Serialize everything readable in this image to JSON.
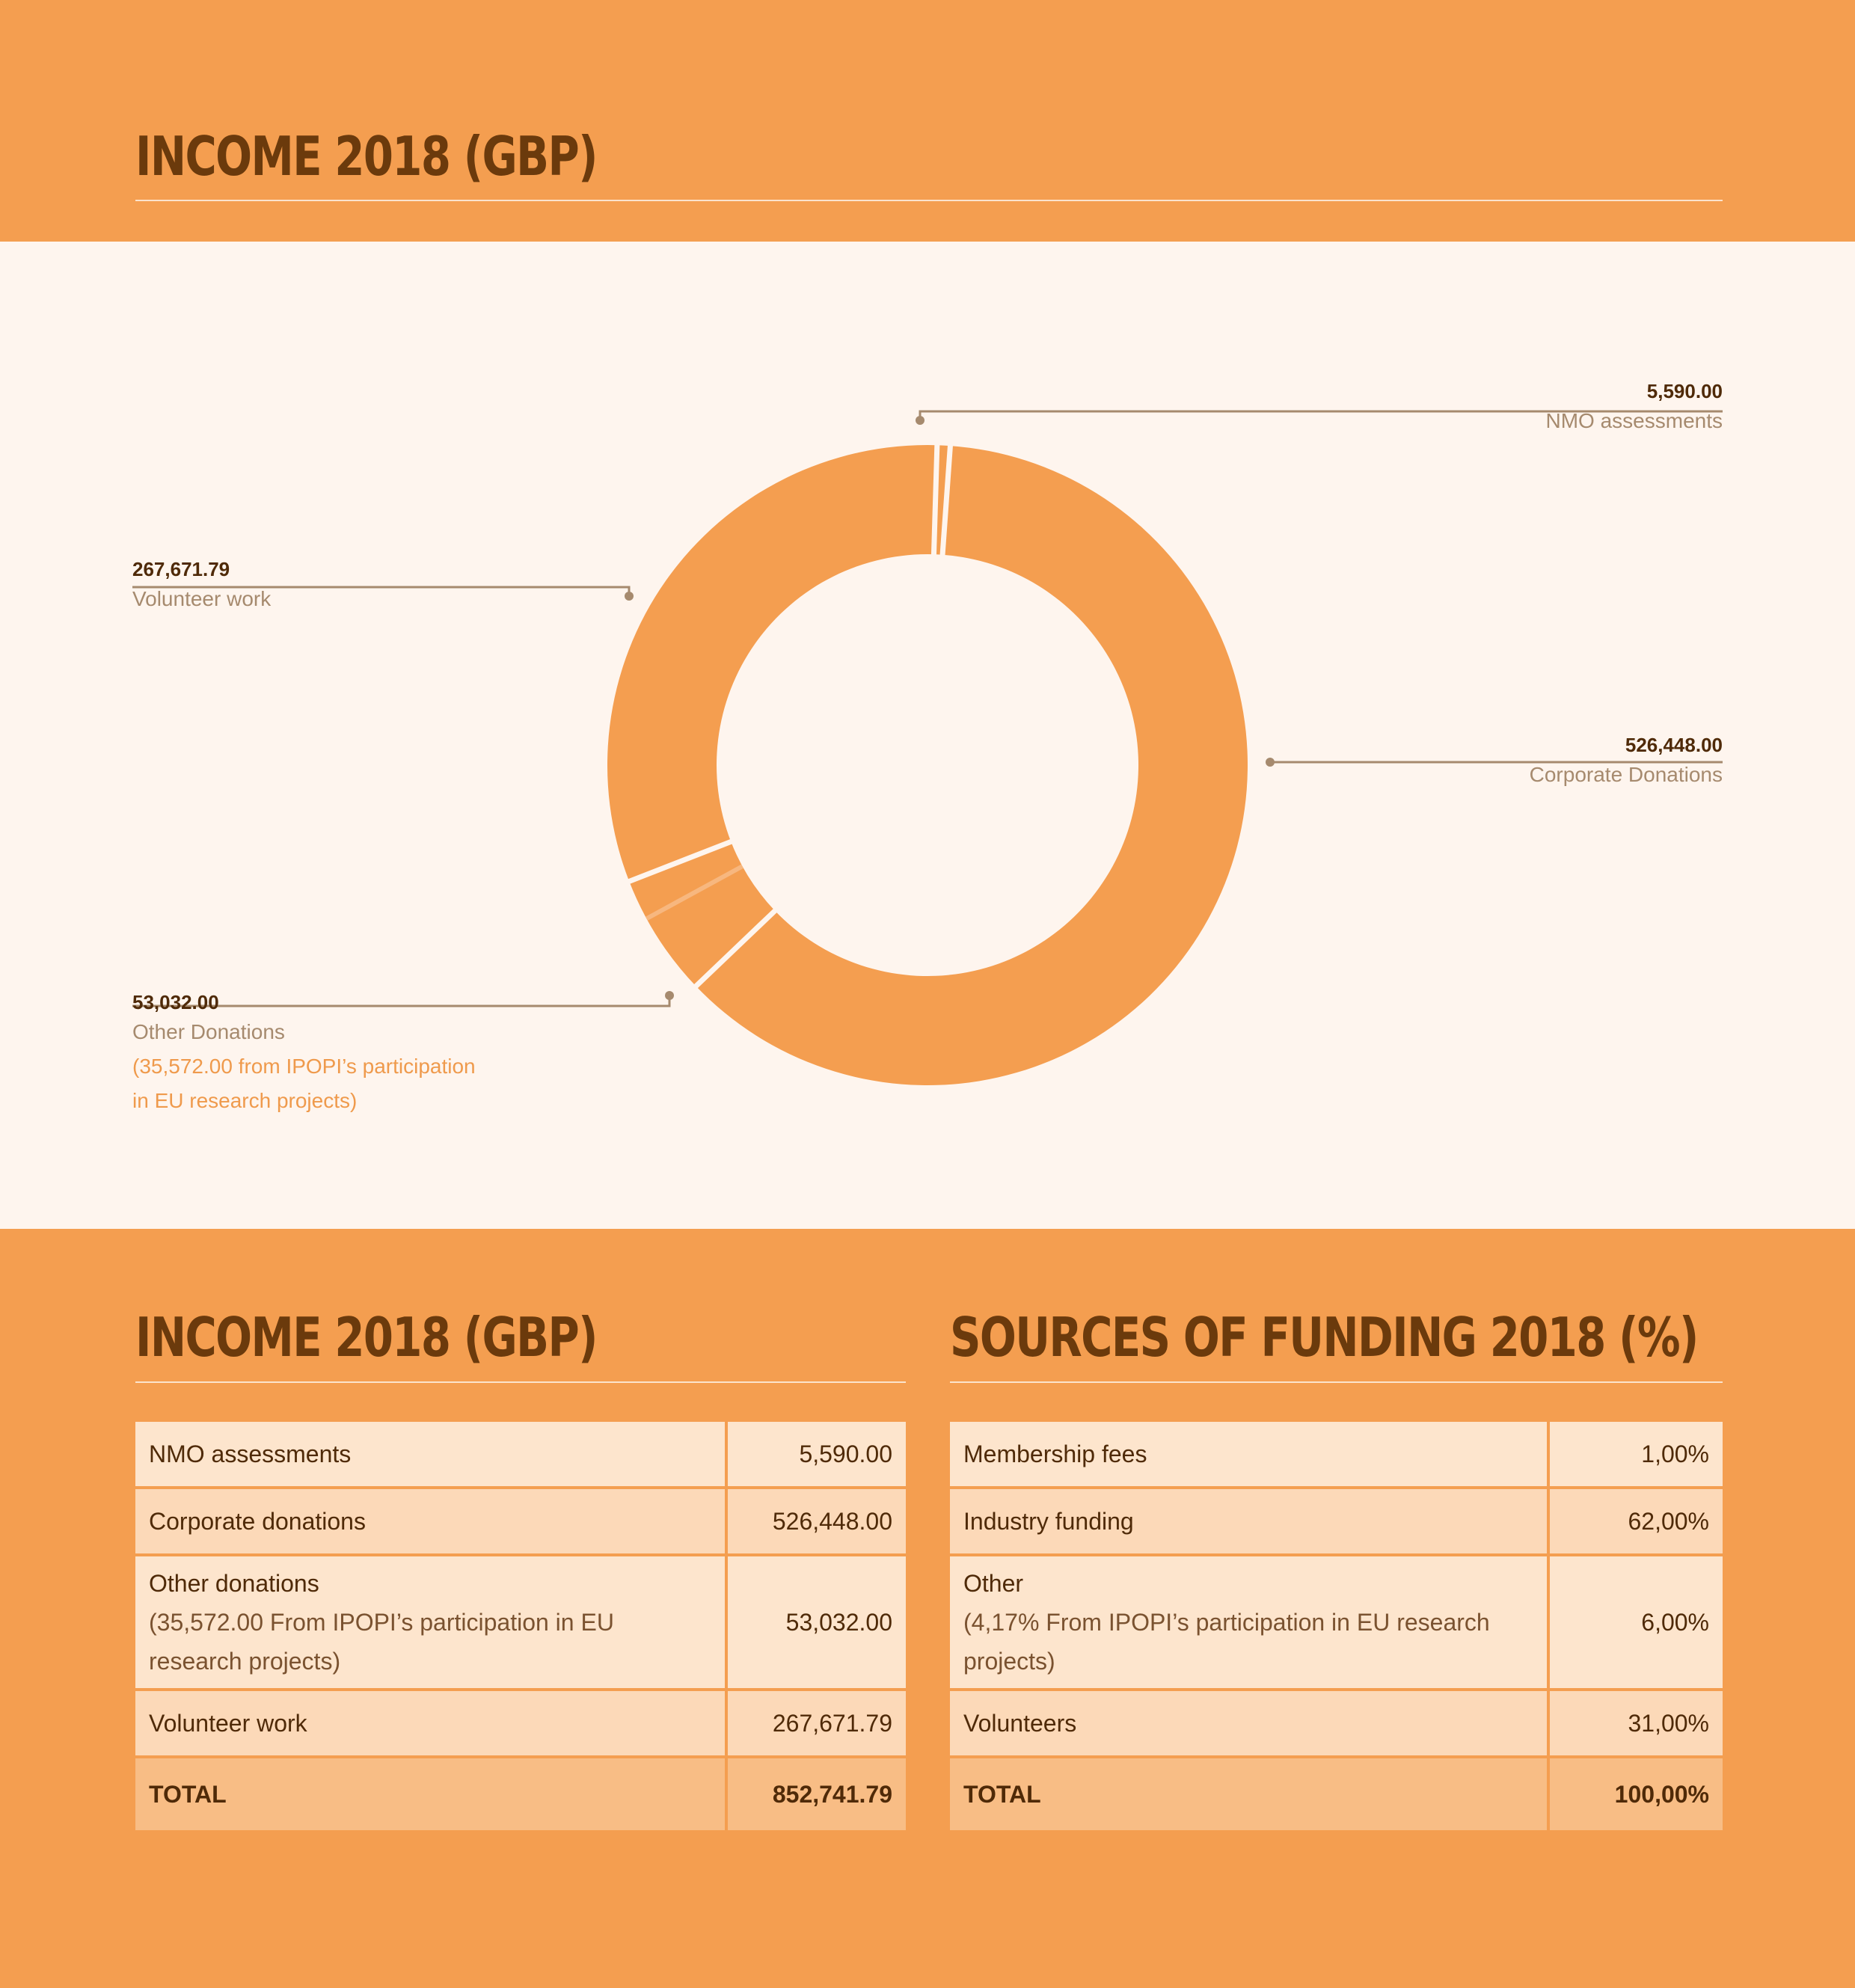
{
  "header": {
    "title": "INCOME 2018 (GBP)"
  },
  "colors": {
    "background": "#f49e50",
    "panel": "#fef5ee",
    "slice": "#f49e50",
    "sub_slice": "#f7b77f",
    "title": "#6b3a0c",
    "rule": "#fbe3cc"
  },
  "chart_data": {
    "type": "pie",
    "variant": "donut",
    "slices": [
      {
        "label": "NMO assessments",
        "value": 5590.0
      },
      {
        "label": "Corporate Donations",
        "value": 526448.0
      },
      {
        "label": "Other Donations",
        "value": 53032.0,
        "sub_portion": 35572.0
      },
      {
        "label": "Volunteer work",
        "value": 267671.79
      }
    ],
    "callouts": {
      "nmo": {
        "value": "5,590.00",
        "label": "NMO assessments"
      },
      "corporate": {
        "value": "526,448.00",
        "label": "Corporate Donations"
      },
      "other": {
        "value": "53,032.00",
        "label": "Other Donations",
        "note_line1": "(35,572.00 from IPOPI’s participation",
        "note_line2": "in EU research projects)"
      },
      "volunteer": {
        "value": "267,671.79",
        "label": "Volunteer work"
      }
    }
  },
  "income_table": {
    "title": "INCOME 2018 (GBP)",
    "rows": [
      {
        "label": "NMO assessments",
        "value": "5,590.00"
      },
      {
        "label": "Corporate donations",
        "value": "526,448.00"
      },
      {
        "label": "Other donations",
        "note": "(35,572.00 From IPOPI’s participation in EU research projects)",
        "value": "53,032.00"
      },
      {
        "label": "Volunteer work",
        "value": "267,671.79"
      }
    ],
    "total": {
      "label": "TOTAL",
      "value": "852,741.79"
    }
  },
  "funding_table": {
    "title": "SOURCES OF FUNDING 2018 (%)",
    "rows": [
      {
        "label": "Membership fees",
        "value": "1,00%"
      },
      {
        "label": "Industry funding",
        "value": "62,00%"
      },
      {
        "label": "Other",
        "note": "(4,17% From IPOPI’s participation in EU research projects)",
        "value": "6,00%"
      },
      {
        "label": "Volunteers",
        "value": "31,00%"
      }
    ],
    "total": {
      "label": "TOTAL",
      "value": "100,00%"
    }
  }
}
